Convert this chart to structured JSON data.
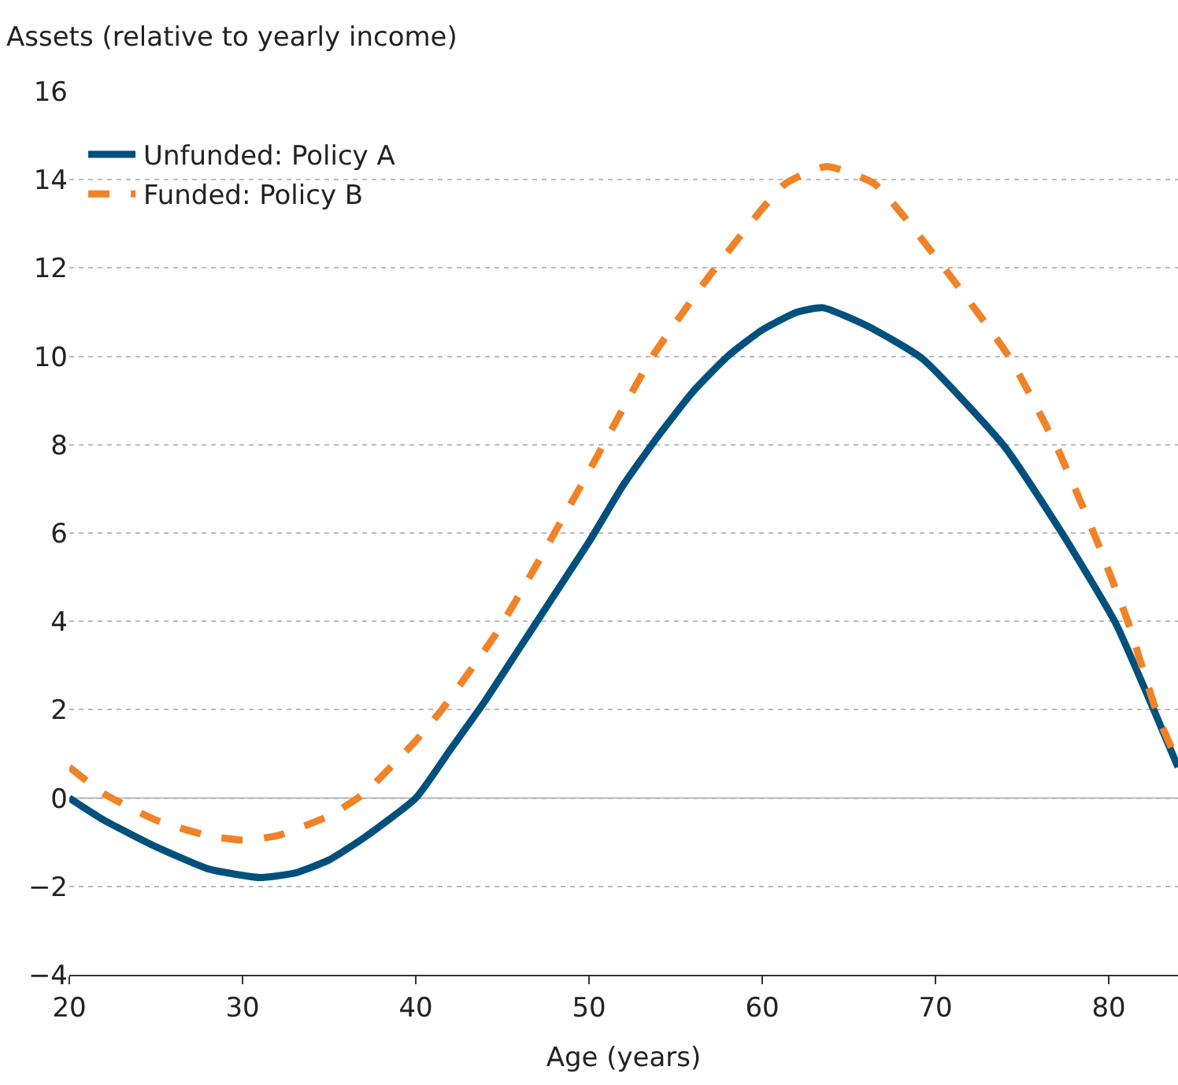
{
  "chart_data": {
    "type": "line",
    "ylabel": "Assets (relative to yearly income)",
    "xlabel": "Age (years)",
    "xlim": [
      20,
      84
    ],
    "xticks": [
      20,
      30,
      40,
      50,
      60,
      70,
      80
    ],
    "ylim": [
      -4,
      16
    ],
    "yticks": [
      -4,
      -2,
      0,
      2,
      4,
      6,
      8,
      10,
      12,
      14,
      16
    ],
    "grid": "y",
    "legend": "top left",
    "ref_lines": [
      {
        "axis": "y",
        "value": 0,
        "color": "#bbbbbb"
      }
    ],
    "series": [
      {
        "name": "Unfunded: Policy A",
        "color": "#00507e",
        "line_style": "solid",
        "x": [
          20,
          22,
          25,
          28,
          30,
          31,
          33,
          35,
          37,
          40,
          42,
          44,
          46,
          48,
          50,
          52,
          54,
          56,
          58,
          60,
          62,
          63.5,
          66,
          69.2,
          74,
          77.4,
          80.4,
          82.6,
          84
        ],
        "values": [
          0,
          -0.5,
          -1.1,
          -1.6,
          -1.75,
          -1.8,
          -1.7,
          -1.4,
          -0.9,
          0,
          1.1,
          2.2,
          3.4,
          4.6,
          5.8,
          7.1,
          8.2,
          9.2,
          10.0,
          10.6,
          11.0,
          11.1,
          10.7,
          9.96,
          7.95,
          5.94,
          3.96,
          2.0,
          0.7
        ]
      },
      {
        "name": "Funded: Policy B",
        "color": "#f08228",
        "line_style": "dashed",
        "x": [
          20,
          22,
          25,
          28,
          30,
          32,
          35,
          37,
          40,
          41.5,
          44.6,
          47,
          50,
          53.6,
          57.1,
          61.3,
          63.7,
          66.5,
          70.7,
          74.3,
          77,
          79.2,
          81.1,
          82.8,
          84
        ],
        "values": [
          0.7,
          0.1,
          -0.5,
          -0.85,
          -0.95,
          -0.85,
          -0.4,
          0.1,
          1.3,
          2.0,
          3.7,
          5.3,
          7.4,
          9.96,
          11.9,
          13.9,
          14.3,
          13.9,
          11.9,
          9.96,
          7.95,
          5.94,
          4.0,
          1.9,
          0.8
        ]
      }
    ]
  }
}
